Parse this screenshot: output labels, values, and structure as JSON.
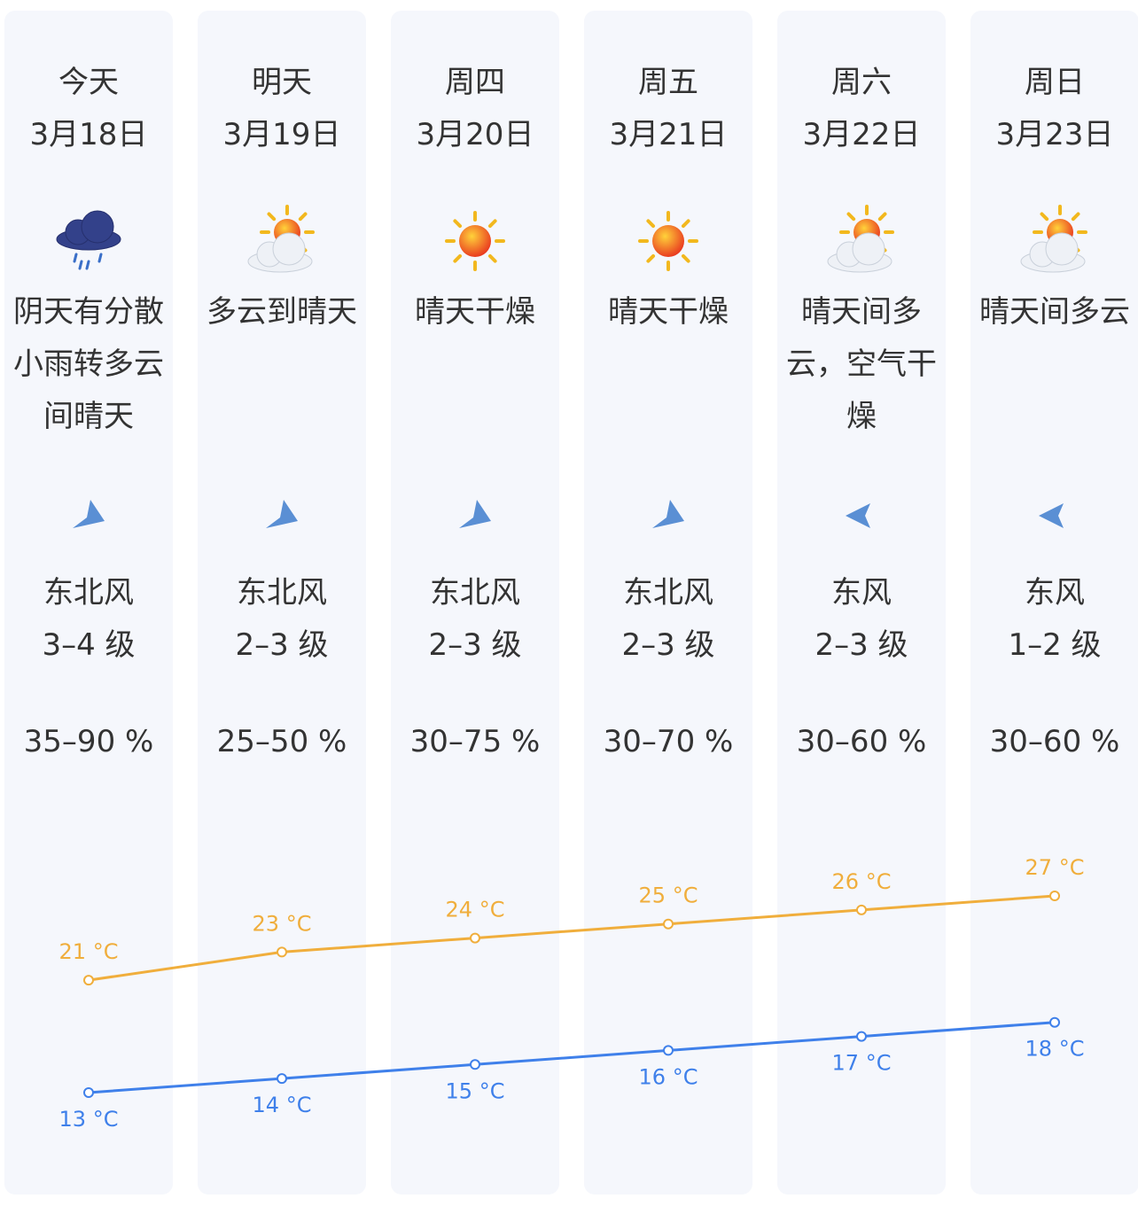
{
  "days": [
    {
      "day": "今天",
      "date": "3月18日",
      "weather": "阴天有分散小雨转多云间晴天",
      "wind_direction": "东北风",
      "wind_level": "3–4 级",
      "humidity": "35–90 %"
    },
    {
      "day": "明天",
      "date": "3月19日",
      "weather": "多云到晴天",
      "wind_direction": "东北风",
      "wind_level": "2–3 级",
      "humidity": "25–50 %"
    },
    {
      "day": "周四",
      "date": "3月20日",
      "weather": "晴天干燥",
      "wind_direction": "东北风",
      "wind_level": "2–3 级",
      "humidity": "30–75 %"
    },
    {
      "day": "周五",
      "date": "3月21日",
      "weather": "晴天干燥",
      "wind_direction": "东北风",
      "wind_level": "2–3 级",
      "humidity": "30–70 %"
    },
    {
      "day": "周六",
      "date": "3月22日",
      "weather": "晴天间多云，空气干燥",
      "wind_direction": "东风",
      "wind_level": "2–3 级",
      "humidity": "30–60 %"
    },
    {
      "day": "周日",
      "date": "3月23日",
      "weather": "晴天间多云",
      "wind_direction": "东风",
      "wind_level": "1–2 级",
      "humidity": "30–60 %"
    }
  ],
  "chart_data": {
    "type": "line",
    "series": [
      {
        "color": "#f0ae3c",
        "values": [
          21,
          23,
          24,
          25,
          26,
          27
        ],
        "value_labels": [
          "21 °C",
          "23 °C",
          "24 °C",
          "25 °C",
          "26 °C",
          "27 °C"
        ]
      },
      {
        "color": "#3f80ea",
        "values": [
          13,
          14,
          15,
          16,
          17,
          18
        ],
        "value_labels": [
          "13 °C",
          "14 °C",
          "15 °C",
          "16 °C",
          "17 °C",
          "18 °C"
        ]
      }
    ]
  }
}
